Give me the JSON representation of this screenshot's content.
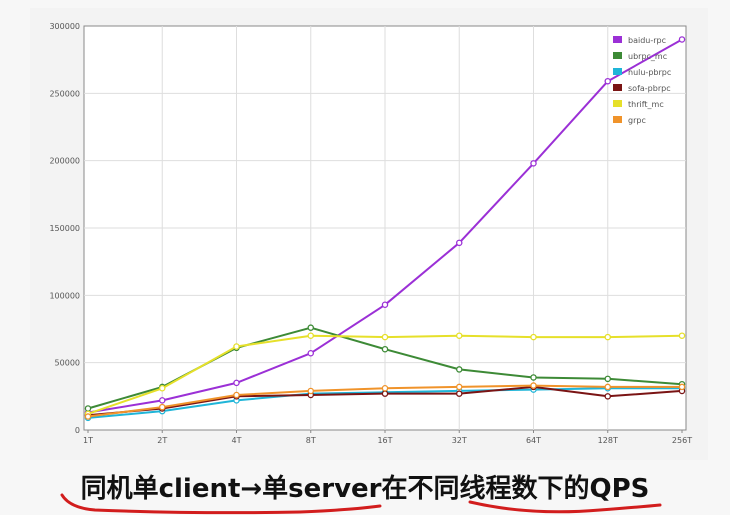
{
  "caption": "同机单client→单server在不同线程数下的QPS",
  "chart_data": {
    "type": "line",
    "title": "",
    "xlabel": "",
    "ylabel": "",
    "categories": [
      "1T",
      "2T",
      "4T",
      "8T",
      "16T",
      "32T",
      "64T",
      "128T",
      "256T"
    ],
    "ylim": [
      0,
      300000
    ],
    "yticks": [
      0,
      50000,
      100000,
      150000,
      200000,
      250000,
      300000
    ],
    "ytick_labels": [
      "0",
      "50000",
      "100000",
      "150000",
      "200000",
      "250000",
      "300000"
    ],
    "grid": true,
    "legend_position": "top-right",
    "series": [
      {
        "name": "baidu-rpc",
        "color": "#9b30d6",
        "values": [
          13000,
          22000,
          35000,
          57000,
          93000,
          139000,
          198000,
          259000,
          290000
        ]
      },
      {
        "name": "ubrpc_mc",
        "color": "#3d8a36",
        "values": [
          16000,
          32000,
          61000,
          76000,
          60000,
          45000,
          39000,
          38000,
          34000
        ]
      },
      {
        "name": "hulu-pbrpc",
        "color": "#1fb5d8",
        "values": [
          9000,
          14000,
          22000,
          27000,
          28000,
          29000,
          30000,
          31000,
          31000
        ]
      },
      {
        "name": "sofa-pbrpc",
        "color": "#7a1414",
        "values": [
          11000,
          16000,
          25000,
          26000,
          27000,
          27000,
          32000,
          25000,
          29000
        ]
      },
      {
        "name": "thrift_mc",
        "color": "#e6e02a",
        "values": [
          12000,
          31000,
          62000,
          70000,
          69000,
          70000,
          69000,
          69000,
          70000
        ]
      },
      {
        "name": "grpc",
        "color": "#f0932a",
        "values": [
          10000,
          17000,
          26000,
          29000,
          31000,
          32000,
          33000,
          32000,
          32000
        ]
      }
    ]
  }
}
